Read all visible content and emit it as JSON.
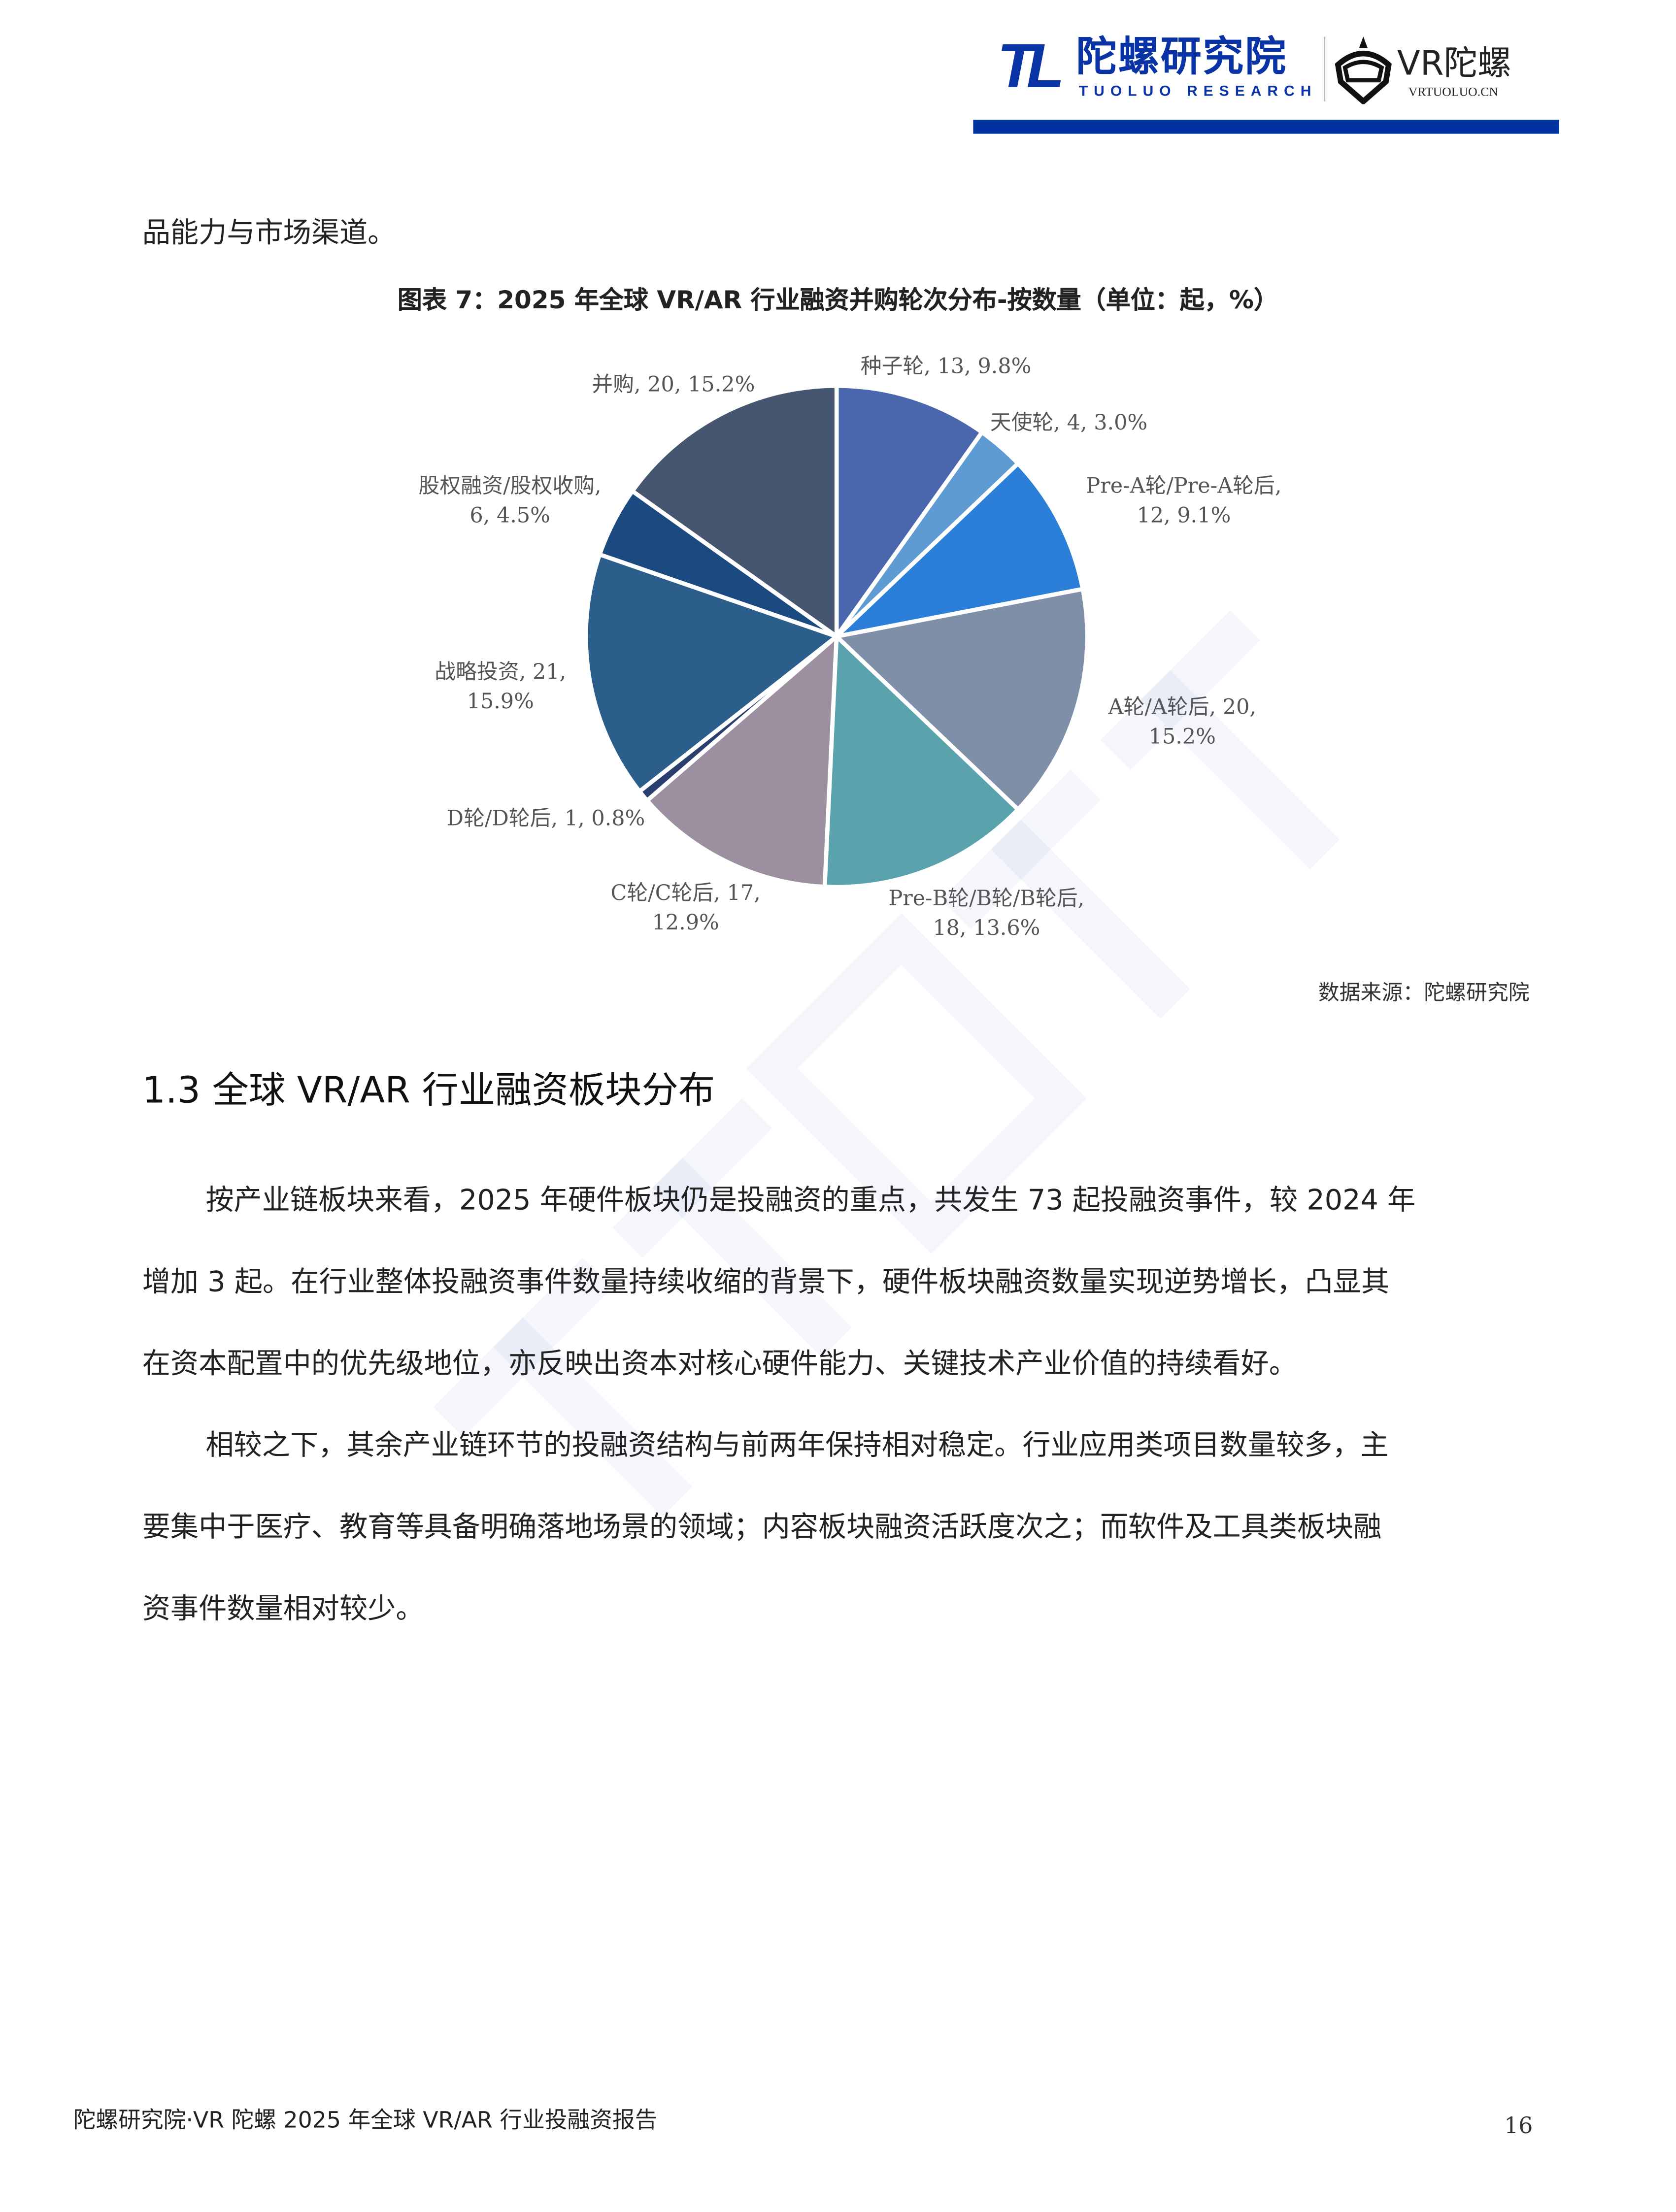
{
  "header": {
    "logo_mark": "TL",
    "logo_cn": "陀螺研究院",
    "logo_en": "TUOLUO RESEARCH",
    "vr_logo_cn": "VR陀螺",
    "vr_logo_en": "VRTUOLUO.CN",
    "accent": "#0033a0"
  },
  "body": {
    "intro_tail": "品能力与市场渠道。",
    "figure_caption": "图表 7：2025 年全球 VR/AR 行业融资并购轮次分布-按数量（单位：起，%）",
    "source": "数据来源：陀螺研究院",
    "section_heading": "1.3  全球 VR/AR 行业融资板块分布",
    "paragraphs": [
      [
        "按产业链板块来看，2025 年硬件板块仍是投融资的重点，共发生 73 起投融资事件，较 2024 年",
        "增加 3 起。在行业整体投融资事件数量持续收缩的背景下，硬件板块融资数量实现逆势增长，凸显其",
        "在资本配置中的优先级地位，亦反映出资本对核心硬件能力、关键技术产业价值的持续看好。"
      ],
      [
        "相较之下，其余产业链环节的投融资结构与前两年保持相对稳定。行业应用类项目数量较多，主",
        "要集中于医疗、教育等具备明确落地场景的领域；内容板块融资活跃度次之；而软件及工具类板块融",
        "资事件数量相对较少。"
      ]
    ]
  },
  "chart_data": {
    "type": "pie",
    "title": "图表 7：2025 年全球 VR/AR 行业融资并购轮次分布-按数量（单位：起，%）",
    "start": "12 o'clock",
    "direction": "clockwise",
    "slices": [
      {
        "name": "种子轮",
        "value": 13,
        "percent": "9.8%",
        "color": "#4a66ad",
        "label": [
          "种子轮, 13, 9.8%"
        ]
      },
      {
        "name": "天使轮",
        "value": 4,
        "percent": "3.0%",
        "color": "#5f9bd3",
        "label": [
          "天使轮, 4, 3.0%"
        ]
      },
      {
        "name": "Pre-A轮/Pre-A轮后",
        "value": 12,
        "percent": "9.1%",
        "color": "#2b7fd8",
        "label": [
          "Pre-A轮/Pre-A轮后,",
          "12, 9.1%"
        ]
      },
      {
        "name": "A轮/A轮后",
        "value": 20,
        "percent": "15.2%",
        "color": "#7f8fa8",
        "label": [
          "A轮/A轮后, 20,",
          "15.2%"
        ]
      },
      {
        "name": "Pre-B轮/B轮/B轮后",
        "value": 18,
        "percent": "13.6%",
        "color": "#5aa3ad",
        "label": [
          "Pre-B轮/B轮/B轮后,",
          "18, 13.6%"
        ]
      },
      {
        "name": "C轮/C轮后",
        "value": 17,
        "percent": "12.9%",
        "color": "#9c8fa0",
        "label": [
          "C轮/C轮后, 17,",
          "12.9%"
        ]
      },
      {
        "name": "D轮/D轮后",
        "value": 1,
        "percent": "0.8%",
        "color": "#2a3f6e",
        "label": [
          "D轮/D轮后, 1, 0.8%"
        ]
      },
      {
        "name": "战略投资",
        "value": 21,
        "percent": "15.9%",
        "color": "#2c5e8c",
        "label": [
          "战略投资, 21,",
          "15.9%"
        ]
      },
      {
        "name": "股权融资/股权收购",
        "value": 6,
        "percent": "4.5%",
        "color": "#1b4a80",
        "label": [
          "股权融资/股权收购,",
          "6, 4.5%"
        ]
      },
      {
        "name": "并购",
        "value": 20,
        "percent": "15.2%",
        "color": "#465670",
        "label": [
          "并购, 20, 15.2%"
        ]
      }
    ]
  },
  "footer": {
    "report_title": "陀螺研究院·VR 陀螺  2025 年全球 VR/AR 行业投融资报告",
    "page_number": "16"
  },
  "watermark": {
    "cn": "陀螺研究院",
    "en": "TUOLUO RESEARCH"
  }
}
